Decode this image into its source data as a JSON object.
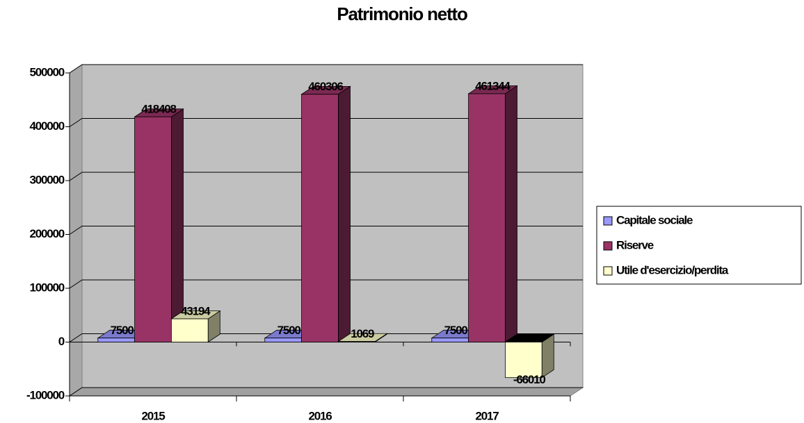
{
  "chart_data": {
    "type": "bar",
    "title": "Patrimonio netto",
    "categories": [
      "2015",
      "2016",
      "2017"
    ],
    "series": [
      {
        "name": "Capitale sociale",
        "color": "#9999ff",
        "values": [
          7500,
          7500,
          7500
        ]
      },
      {
        "name": "Riserve",
        "color": "#993366",
        "values": [
          418408,
          460306,
          461344
        ]
      },
      {
        "name": "Utile d'esercizio/perdita",
        "color": "#ffffcc",
        "values": [
          43194,
          1069,
          -66010
        ]
      }
    ],
    "ylim": [
      -100000,
      500000
    ],
    "yticks": [
      -100000,
      0,
      100000,
      200000,
      300000,
      400000,
      500000
    ],
    "grid": true,
    "legend": "right"
  }
}
